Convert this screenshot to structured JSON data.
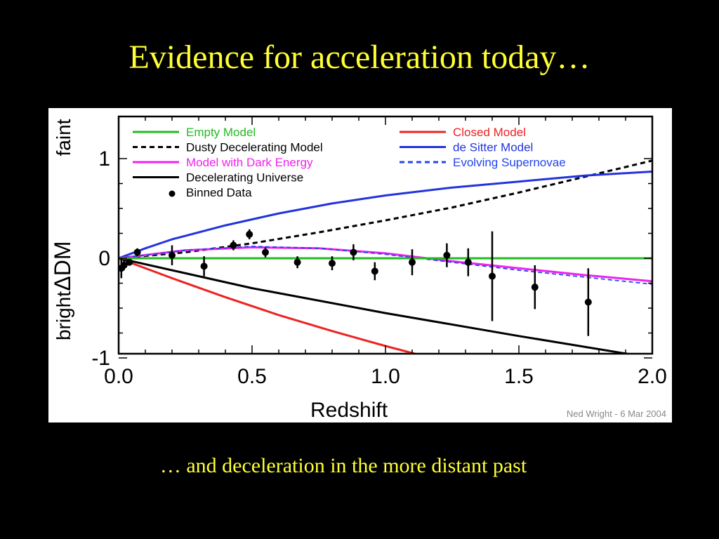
{
  "slide": {
    "title": "Evidence for acceleration today…",
    "subtitle": "… and deceleration in the more distant past"
  },
  "colors": {
    "background": "#000000",
    "text": "#ffff33",
    "empty": "#22bb22",
    "closed": "#ee2222",
    "desitter": "#2233dd",
    "evolving": "#2244ee",
    "darkenergy": "#ee22ee",
    "decel": "#000000",
    "dusty": "#000000",
    "data": "#000000"
  },
  "chart_data": {
    "type": "scatter",
    "xlabel": "Redshift",
    "ylabel": "ΔDM",
    "ylabel_top": "faint",
    "ylabel_bottom": "bright",
    "xlim": [
      0.0,
      2.0
    ],
    "ylim": [
      -1.0,
      1.3
    ],
    "xticks": [
      0.0,
      0.5,
      1.0,
      1.5,
      2.0
    ],
    "xtick_labels": [
      "0.0",
      "0.5",
      "1.0",
      "1.5",
      "2.0"
    ],
    "yticks": [
      -1,
      0,
      1
    ],
    "ytick_labels": [
      "-1",
      "0",
      "1"
    ],
    "credit": "Ned Wright - 6 Mar 2004",
    "legend_placement": "top",
    "series": [
      {
        "name": "Empty Model",
        "key": "empty",
        "style": "solid",
        "color": "#22bb22",
        "x": [
          0.0,
          2.0
        ],
        "y": [
          0.0,
          0.0
        ]
      },
      {
        "name": "Closed Model",
        "key": "closed",
        "style": "solid",
        "color": "#ee2222",
        "x": [
          0.0,
          0.2,
          0.4,
          0.6,
          0.8,
          1.0,
          1.17
        ],
        "y": [
          0.0,
          -0.2,
          -0.39,
          -0.57,
          -0.73,
          -0.88,
          -1.0
        ]
      },
      {
        "name": "Dusty Decelerating Model",
        "key": "dusty",
        "style": "dashed",
        "color": "#000000",
        "x": [
          0.0,
          0.25,
          0.5,
          0.75,
          1.0,
          1.25,
          1.5,
          1.75,
          2.0
        ],
        "y": [
          0.0,
          0.06,
          0.15,
          0.26,
          0.38,
          0.51,
          0.66,
          0.82,
          0.98
        ]
      },
      {
        "name": "de Sitter Model",
        "key": "desitter",
        "style": "solid",
        "color": "#2233dd",
        "x": [
          0.0,
          0.1,
          0.2,
          0.4,
          0.6,
          0.8,
          1.0,
          1.25,
          1.5,
          1.75,
          2.0
        ],
        "y": [
          0.0,
          0.1,
          0.19,
          0.33,
          0.45,
          0.55,
          0.63,
          0.71,
          0.77,
          0.83,
          0.87
        ]
      },
      {
        "name": "Model with Dark Energy",
        "key": "darkenergy",
        "style": "solid",
        "color": "#ee22ee",
        "x": [
          0.0,
          0.25,
          0.5,
          0.75,
          1.0,
          1.25,
          1.5,
          1.75,
          2.0
        ],
        "y": [
          0.0,
          0.08,
          0.11,
          0.1,
          0.05,
          -0.03,
          -0.1,
          -0.17,
          -0.23
        ]
      },
      {
        "name": "Evolving Supernovae",
        "key": "evolving",
        "style": "dashed",
        "color": "#2244ee",
        "x": [
          0.0,
          0.25,
          0.5,
          0.75,
          1.0,
          1.25,
          1.5,
          1.75,
          2.0
        ],
        "y": [
          0.0,
          0.08,
          0.12,
          0.1,
          0.04,
          -0.04,
          -0.12,
          -0.19,
          -0.26
        ]
      },
      {
        "name": "Decelerating Universe",
        "key": "decel",
        "style": "solid",
        "color": "#000000",
        "x": [
          0.0,
          0.5,
          1.0,
          1.5,
          2.0
        ],
        "y": [
          0.0,
          -0.3,
          -0.55,
          -0.78,
          -1.0
        ]
      }
    ],
    "binned_data": {
      "name": "Binned Data",
      "points": [
        {
          "x": 0.01,
          "y": -0.1,
          "err": 0.1
        },
        {
          "x": 0.02,
          "y": -0.07,
          "err": 0.05
        },
        {
          "x": 0.04,
          "y": -0.04,
          "err": 0.03
        },
        {
          "x": 0.07,
          "y": 0.06,
          "err": 0.04
        },
        {
          "x": 0.2,
          "y": 0.03,
          "err": 0.1
        },
        {
          "x": 0.32,
          "y": -0.08,
          "err": 0.1
        },
        {
          "x": 0.43,
          "y": 0.13,
          "err": 0.05
        },
        {
          "x": 0.49,
          "y": 0.24,
          "err": 0.05
        },
        {
          "x": 0.55,
          "y": 0.06,
          "err": 0.05
        },
        {
          "x": 0.67,
          "y": -0.04,
          "err": 0.06
        },
        {
          "x": 0.8,
          "y": -0.05,
          "err": 0.07
        },
        {
          "x": 0.88,
          "y": 0.06,
          "err": 0.08
        },
        {
          "x": 0.96,
          "y": -0.13,
          "err": 0.09
        },
        {
          "x": 1.1,
          "y": -0.04,
          "err": 0.13
        },
        {
          "x": 1.23,
          "y": 0.03,
          "err": 0.12
        },
        {
          "x": 1.31,
          "y": -0.04,
          "err": 0.14
        },
        {
          "x": 1.4,
          "y": -0.18,
          "err": 0.45
        },
        {
          "x": 1.56,
          "y": -0.29,
          "err": 0.22
        },
        {
          "x": 1.76,
          "y": -0.44,
          "err": 0.34
        }
      ]
    },
    "legend": {
      "left": [
        {
          "label": "Empty Model",
          "key": "empty",
          "style": "solid",
          "color": "#22bb22",
          "text_color": "#22bb22"
        },
        {
          "label": "Dusty Decelerating Model",
          "key": "dusty",
          "style": "dashed",
          "color": "#000000",
          "text_color": "#000000"
        },
        {
          "label": "Model with Dark Energy",
          "key": "darkenergy",
          "style": "solid",
          "color": "#ee22ee",
          "text_color": "#ee22ee"
        },
        {
          "label": "Decelerating Universe",
          "key": "decel",
          "style": "solid",
          "color": "#000000",
          "text_color": "#000000"
        },
        {
          "label": "Binned Data",
          "key": "data",
          "style": "dot",
          "color": "#000000",
          "text_color": "#000000"
        }
      ],
      "right": [
        {
          "label": "Closed Model",
          "key": "closed",
          "style": "solid",
          "color": "#ee2222",
          "text_color": "#ee2222"
        },
        {
          "label": "de Sitter Model",
          "key": "desitter",
          "style": "solid",
          "color": "#2233dd",
          "text_color": "#2233dd"
        },
        {
          "label": "Evolving Supernovae",
          "key": "evolving",
          "style": "dashed",
          "color": "#2244ee",
          "text_color": "#2244ee"
        }
      ]
    }
  }
}
